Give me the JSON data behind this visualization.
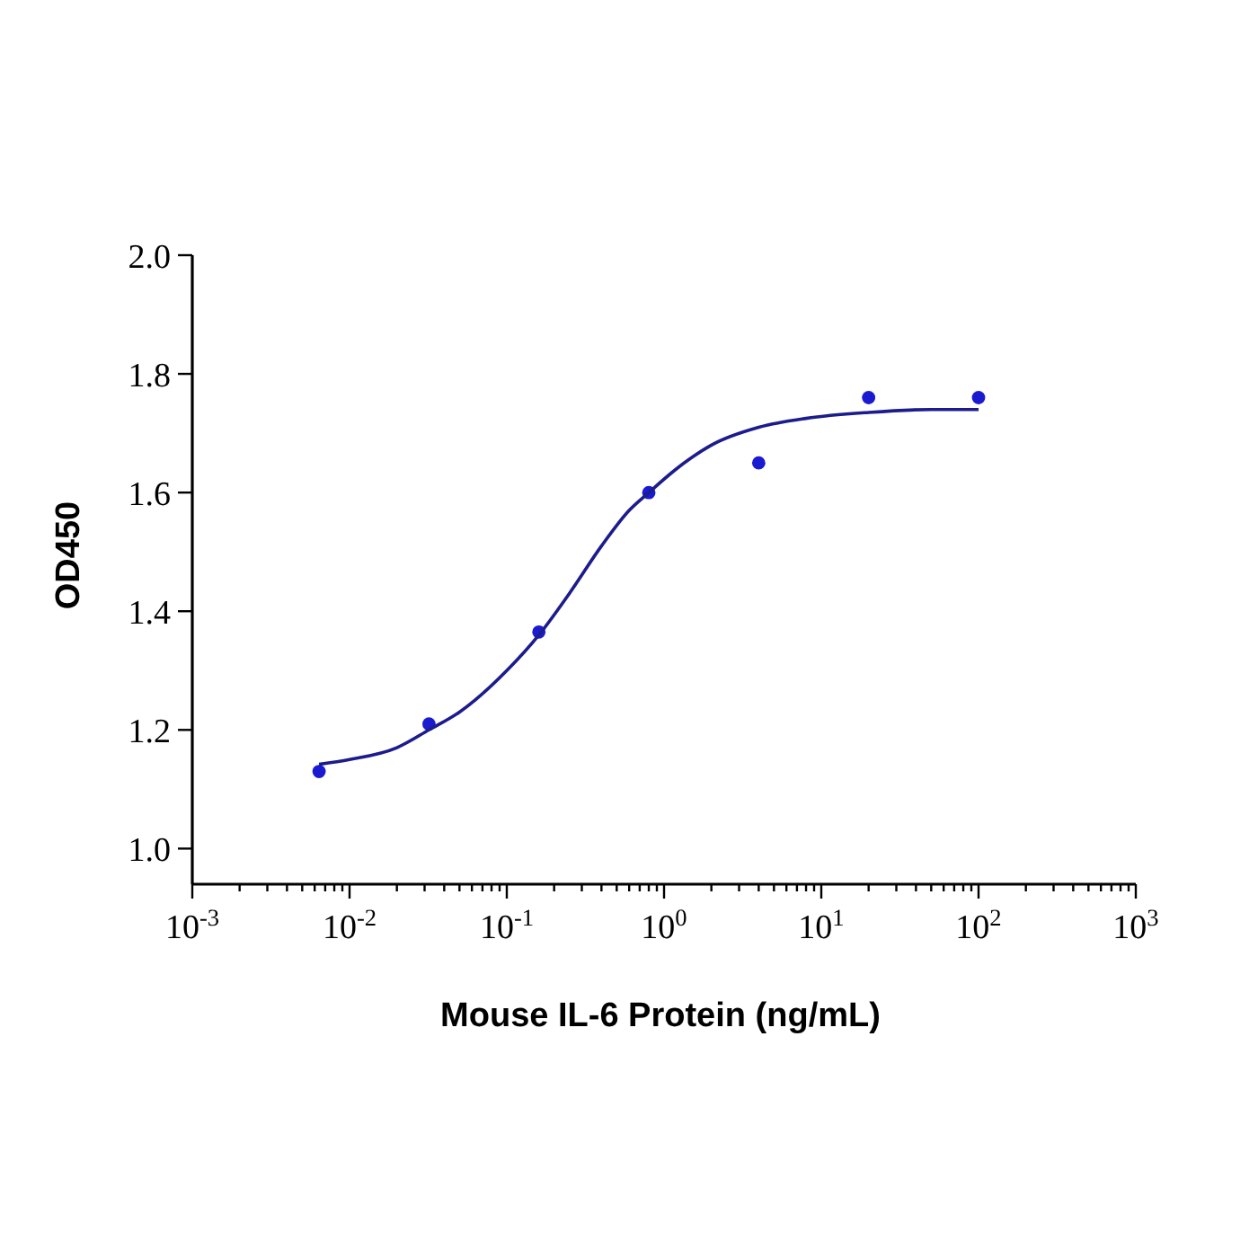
{
  "chart_data": {
    "type": "scatter",
    "xlabel": "Mouse IL-6 Protein (ng/mL)",
    "ylabel": "OD450",
    "log": "x",
    "xlim": [
      0.001,
      1000
    ],
    "ylim": [
      0.94,
      2.0
    ],
    "yticks": [
      {
        "value": 1,
        "label": "1.0"
      },
      {
        "value": 1.2,
        "label": "1.2"
      },
      {
        "value": 1.4,
        "label": "1.4"
      },
      {
        "value": 1.6,
        "label": "1.6"
      },
      {
        "value": 1.8,
        "label": "1.8"
      },
      {
        "value": 2,
        "label": "2.0"
      }
    ],
    "xticks": [
      {
        "value": 0.001,
        "label": "10$^{-3}$"
      },
      {
        "value": 0.002,
        "label": null
      },
      {
        "value": 0.003,
        "label": null
      },
      {
        "value": 0.004,
        "label": null
      },
      {
        "value": 0.005,
        "label": null
      },
      {
        "value": 0.006,
        "label": null
      },
      {
        "value": 0.007,
        "label": null
      },
      {
        "value": 0.008,
        "label": null
      },
      {
        "value": 0.009,
        "label": null
      },
      {
        "value": 0.01,
        "label": "10$^{-2}$"
      },
      {
        "value": 0.02,
        "label": null
      },
      {
        "value": 0.03,
        "label": null
      },
      {
        "value": 0.04,
        "label": null
      },
      {
        "value": 0.05,
        "label": null
      },
      {
        "value": 0.06,
        "label": null
      },
      {
        "value": 0.07,
        "label": null
      },
      {
        "value": 0.08,
        "label": null
      },
      {
        "value": 0.09,
        "label": null
      },
      {
        "value": 0.1,
        "label": "10$^{-1}$"
      },
      {
        "value": 0.2,
        "label": null
      },
      {
        "value": 0.3,
        "label": null
      },
      {
        "value": 0.4,
        "label": null
      },
      {
        "value": 0.5,
        "label": null
      },
      {
        "value": 0.6,
        "label": null
      },
      {
        "value": 0.7,
        "label": null
      },
      {
        "value": 0.8,
        "label": null
      },
      {
        "value": 0.9,
        "label": null
      },
      {
        "value": 1,
        "label": "10$^{0}$"
      },
      {
        "value": 2,
        "label": null
      },
      {
        "value": 3,
        "label": null
      },
      {
        "value": 4,
        "label": null
      },
      {
        "value": 5,
        "label": null
      },
      {
        "value": 6,
        "label": null
      },
      {
        "value": 7,
        "label": null
      },
      {
        "value": 8,
        "label": null
      },
      {
        "value": 9,
        "label": null
      },
      {
        "value": 10,
        "label": "10$^{1}$"
      },
      {
        "value": 20,
        "label": null
      },
      {
        "value": 30,
        "label": null
      },
      {
        "value": 40,
        "label": null
      },
      {
        "value": 50,
        "label": null
      },
      {
        "value": 60,
        "label": null
      },
      {
        "value": 70,
        "label": null
      },
      {
        "value": 80,
        "label": null
      },
      {
        "value": 90,
        "label": null
      },
      {
        "value": 100,
        "label": "10$^{2}$"
      },
      {
        "value": 200,
        "label": null
      },
      {
        "value": 300,
        "label": null
      },
      {
        "value": 400,
        "label": null
      },
      {
        "value": 500,
        "label": null
      },
      {
        "value": 600,
        "label": null
      },
      {
        "value": 700,
        "label": null
      },
      {
        "value": 800,
        "label": null
      },
      {
        "value": 900,
        "label": null
      },
      {
        "value": 1000,
        "label": "10$^{3}$"
      }
    ],
    "marker": "circle",
    "series": [
      {
        "color": "#1a1ad0",
        "x": [
          0.0064,
          0.032,
          0.16,
          0.8,
          4,
          20,
          100
        ],
        "values": [
          1.13,
          1.21,
          1.365,
          1.6,
          1.65,
          1.76,
          1.76
        ]
      },
      {
        "type": "line",
        "color": "#1c1c8c",
        "marker": "none",
        "x": [
          0.0064,
          0.01,
          0.02,
          0.032,
          0.05,
          0.1,
          0.16,
          0.25,
          0.4,
          0.6,
          0.8,
          1.2,
          2,
          4,
          8,
          20,
          50,
          100
        ],
        "values": [
          1.142,
          1.15,
          1.17,
          1.2,
          1.23,
          1.3,
          1.36,
          1.43,
          1.51,
          1.57,
          1.6,
          1.64,
          1.68,
          1.71,
          1.725,
          1.735,
          1.74,
          1.74
        ]
      }
    ]
  }
}
